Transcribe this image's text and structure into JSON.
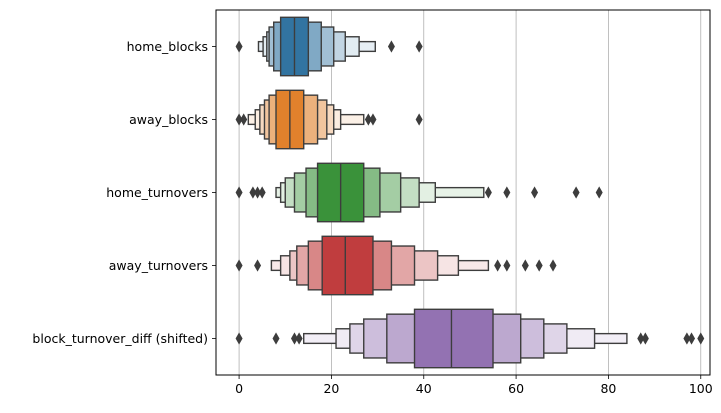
{
  "chart_data": {
    "type": "boxen",
    "orientation": "horizontal",
    "title": "",
    "xlabel": "",
    "ylabel": "",
    "xlim": [
      -5,
      102
    ],
    "x_ticks": [
      0,
      20,
      40,
      60,
      80,
      100
    ],
    "x_tick_labels": [
      "0",
      "20",
      "40",
      "60",
      "80",
      "100"
    ],
    "grid": {
      "x": true,
      "y": false
    },
    "categories": [
      "home_blocks",
      "away_blocks",
      "home_turnovers",
      "away_turnovers",
      "block_turnover_diff (shifted)"
    ],
    "series": [
      {
        "category": "home_blocks",
        "color": "#3274a1",
        "median": 12,
        "levels": [
          [
            9,
            15
          ],
          [
            7.5,
            17.8
          ],
          [
            6.5,
            20.5
          ],
          [
            6,
            23
          ],
          [
            5.2,
            26
          ],
          [
            4.2,
            29.5
          ]
        ],
        "outliers": [
          0,
          33,
          39
        ]
      },
      {
        "category": "away_blocks",
        "color": "#e1812c",
        "median": 11,
        "levels": [
          [
            8,
            14
          ],
          [
            6.5,
            17
          ],
          [
            5.5,
            19
          ],
          [
            4.5,
            20.5
          ],
          [
            3.5,
            22
          ],
          [
            2,
            27
          ]
        ],
        "outliers": [
          0,
          1,
          28,
          29,
          39
        ]
      },
      {
        "category": "home_turnovers",
        "color": "#3a923a",
        "median": 22,
        "levels": [
          [
            17,
            27
          ],
          [
            14.5,
            30.5
          ],
          [
            12,
            35
          ],
          [
            10,
            39
          ],
          [
            9,
            42.5
          ],
          [
            8,
            53
          ]
        ],
        "outliers": [
          0,
          3,
          4,
          5,
          54,
          58,
          64,
          73,
          78
        ]
      },
      {
        "category": "away_turnovers",
        "color": "#c03d3e",
        "median": 23,
        "levels": [
          [
            18,
            29
          ],
          [
            15,
            33
          ],
          [
            12.5,
            38
          ],
          [
            11,
            43
          ],
          [
            9,
            47.5
          ],
          [
            7,
            54
          ]
        ],
        "outliers": [
          0,
          4,
          56,
          58,
          62,
          65,
          68
        ]
      },
      {
        "category": "block_turnover_diff (shifted)",
        "color": "#9372b2",
        "median": 46,
        "levels": [
          [
            38,
            55
          ],
          [
            32,
            61
          ],
          [
            27,
            66
          ],
          [
            24,
            71
          ],
          [
            21,
            77
          ],
          [
            14,
            84
          ]
        ],
        "outliers": [
          0,
          8,
          12,
          13,
          87,
          88,
          97,
          98,
          100
        ]
      }
    ]
  }
}
